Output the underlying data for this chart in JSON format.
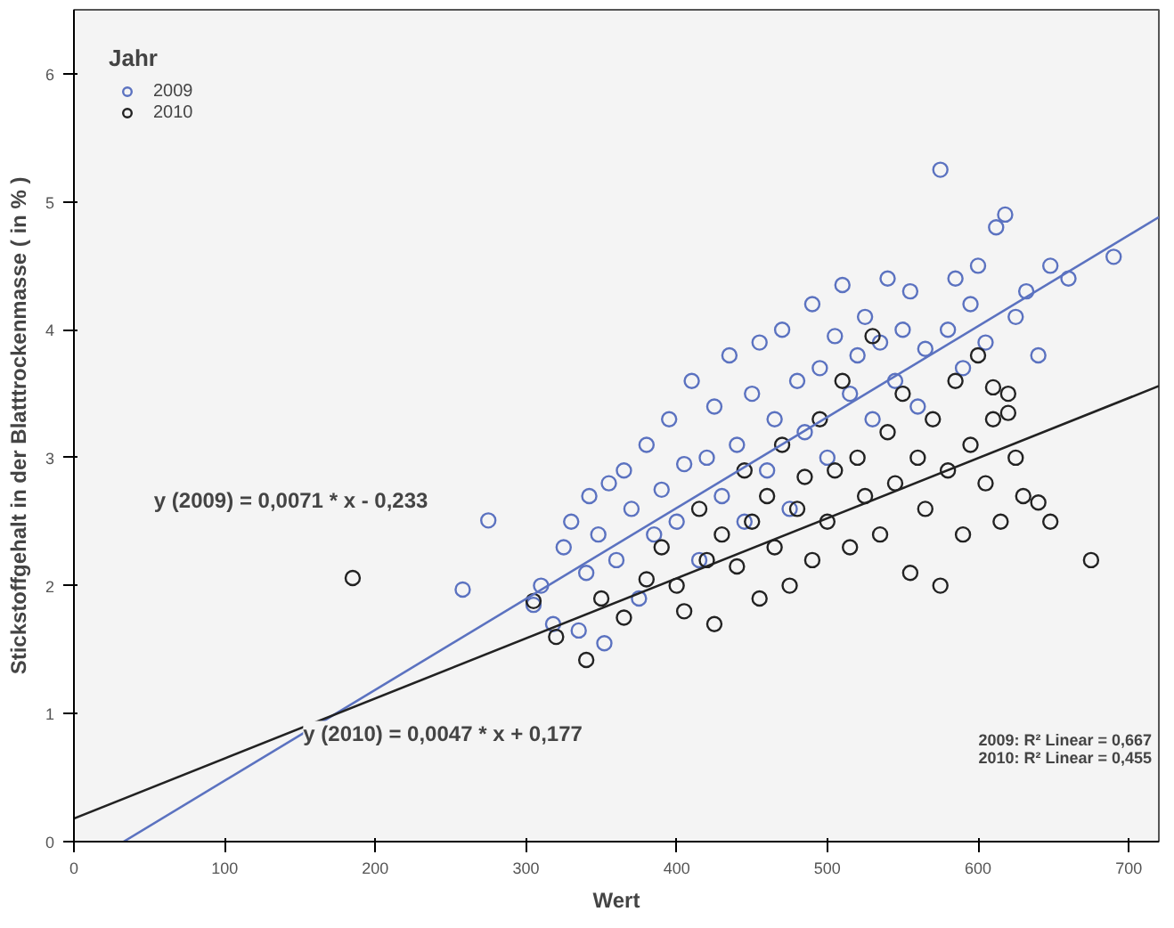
{
  "chart_data": {
    "type": "scatter",
    "xlabel": "Wert",
    "ylabel": "Stickstoffgehalt in der Blatttrockenmasse ( in % )",
    "legend_title": "Jahr",
    "legend": "top left",
    "grid": false,
    "marker": "circle",
    "xlim": [
      0,
      720
    ],
    "ylim": [
      0,
      6.5
    ],
    "xticks": [
      0,
      100,
      200,
      300,
      400,
      500,
      600,
      700
    ],
    "yticks": [
      0,
      1,
      2,
      3,
      4,
      5,
      6
    ],
    "series": [
      {
        "name": "2009",
        "color": "#5b72c0",
        "x": [
          258,
          275,
          305,
          310,
          318,
          325,
          330,
          335,
          340,
          342,
          348,
          352,
          355,
          360,
          365,
          370,
          375,
          380,
          385,
          390,
          395,
          400,
          405,
          410,
          415,
          420,
          425,
          430,
          435,
          440,
          445,
          450,
          455,
          460,
          465,
          470,
          475,
          480,
          485,
          490,
          495,
          500,
          505,
          510,
          515,
          520,
          525,
          530,
          535,
          540,
          545,
          550,
          555,
          560,
          565,
          575,
          580,
          585,
          590,
          595,
          600,
          605,
          612,
          618,
          625,
          632,
          640,
          648,
          660,
          690
        ],
        "values": [
          1.97,
          2.51,
          1.85,
          2.0,
          1.7,
          2.3,
          2.5,
          1.65,
          2.1,
          2.7,
          2.4,
          1.55,
          2.8,
          2.2,
          2.9,
          2.6,
          1.9,
          3.1,
          2.4,
          2.75,
          3.3,
          2.5,
          2.95,
          3.6,
          2.2,
          3.0,
          3.4,
          2.7,
          3.8,
          3.1,
          2.5,
          3.5,
          3.9,
          2.9,
          3.3,
          4.0,
          2.6,
          3.6,
          3.2,
          4.2,
          3.7,
          3.0,
          3.95,
          4.35,
          3.5,
          3.8,
          4.1,
          3.3,
          3.9,
          4.4,
          3.6,
          4.0,
          4.3,
          3.4,
          3.85,
          5.25,
          4.0,
          4.4,
          3.7,
          4.2,
          4.5,
          3.9,
          4.8,
          4.9,
          4.1,
          4.3,
          3.8,
          4.5,
          4.4,
          4.57
        ]
      },
      {
        "name": "2010",
        "color": "#222222",
        "x": [
          185,
          305,
          320,
          340,
          350,
          365,
          380,
          390,
          400,
          405,
          415,
          420,
          425,
          430,
          440,
          445,
          450,
          455,
          460,
          465,
          470,
          475,
          480,
          485,
          490,
          495,
          500,
          505,
          510,
          515,
          520,
          525,
          530,
          535,
          540,
          545,
          550,
          555,
          560,
          565,
          570,
          575,
          580,
          585,
          590,
          595,
          600,
          605,
          610,
          615,
          620,
          625,
          630,
          640,
          648,
          675,
          610,
          620
        ],
        "values": [
          2.06,
          1.88,
          1.6,
          1.42,
          1.9,
          1.75,
          2.05,
          2.3,
          2.0,
          1.8,
          2.6,
          2.2,
          1.7,
          2.4,
          2.15,
          2.9,
          2.5,
          1.9,
          2.7,
          2.3,
          3.1,
          2.0,
          2.6,
          2.85,
          2.2,
          3.3,
          2.5,
          2.9,
          3.6,
          2.3,
          3.0,
          2.7,
          3.95,
          2.4,
          3.2,
          2.8,
          3.5,
          2.1,
          3.0,
          2.6,
          3.3,
          2.0,
          2.9,
          3.6,
          2.4,
          3.1,
          3.8,
          2.8,
          3.3,
          2.5,
          3.5,
          3.0,
          2.7,
          2.65,
          2.5,
          2.2,
          3.55,
          3.35
        ]
      },
      {
        "color": "#5b72c0",
        "type": "line",
        "marker": "none",
        "x": [
          33,
          720
        ],
        "values": [
          0,
          4.88
        ]
      },
      {
        "color": "#222222",
        "type": "line",
        "marker": "none",
        "x": [
          0,
          720
        ],
        "values": [
          0.18,
          3.56
        ]
      }
    ],
    "annotations": [
      "y (2009) = 0,0071 * x - 0,233",
      "y (2010) = 0,0047 * x + 0,177",
      "2009: R² Linear = 0,667",
      "2010: R² Linear = 0,455"
    ]
  }
}
